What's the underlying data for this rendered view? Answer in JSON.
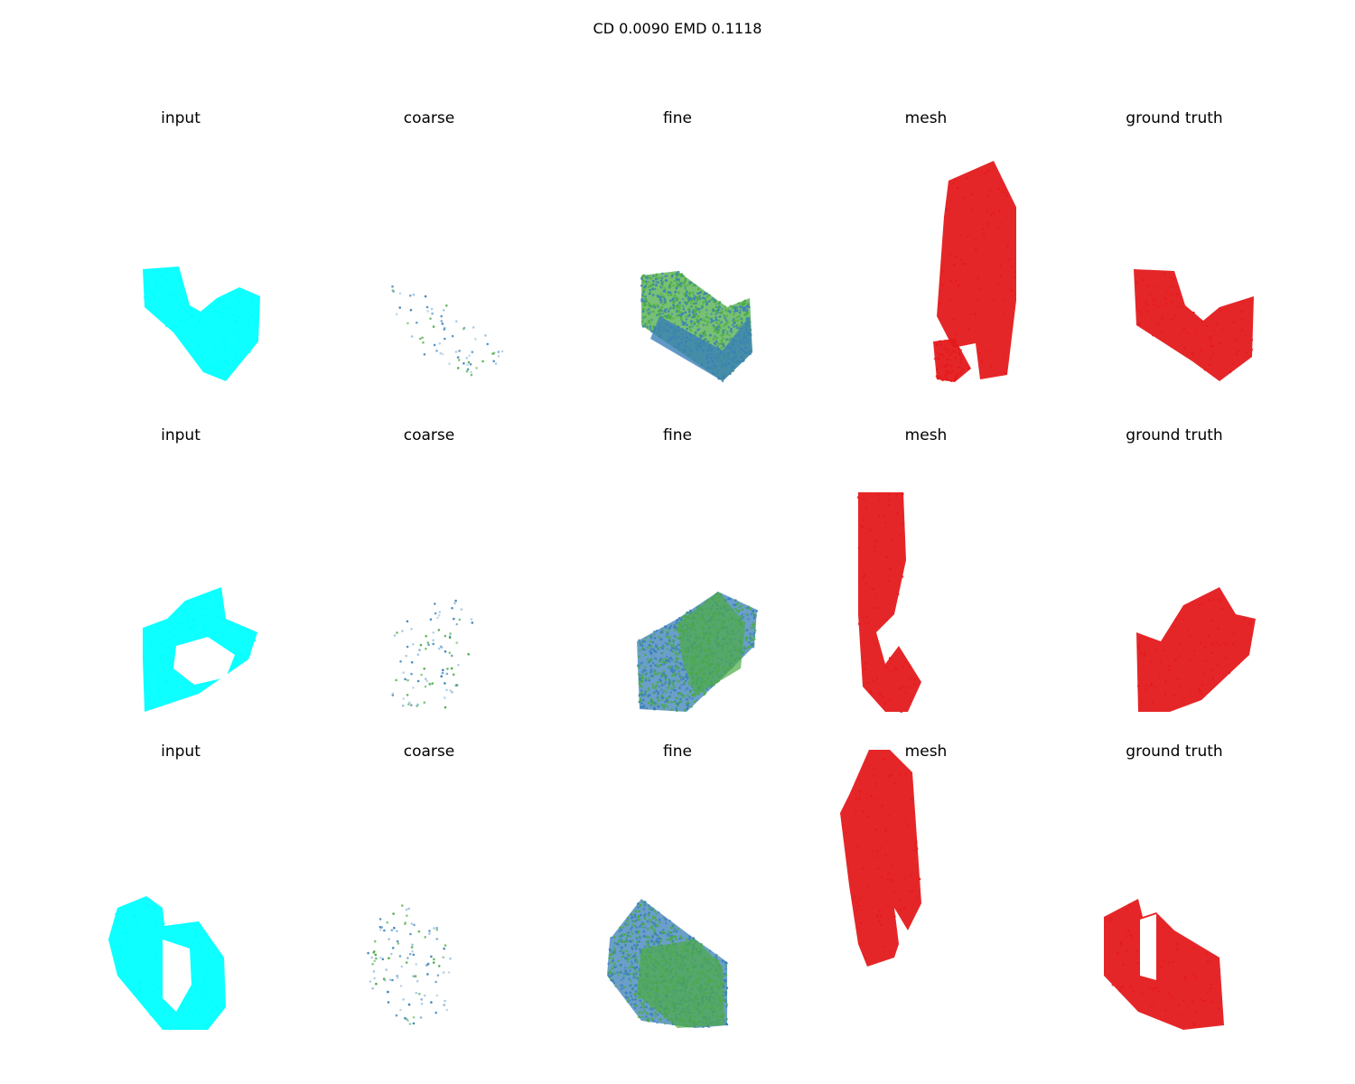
{
  "figure": {
    "title": "CD 0.0090  EMD 0.1118",
    "column_titles": [
      "input",
      "coarse",
      "fine",
      "mesh",
      "ground truth"
    ]
  },
  "colors": {
    "input": "#00ffff",
    "coarse_a": "#3a7fb8",
    "coarse_b": "#4bab45",
    "fine_a": "#3a7fb8",
    "fine_b": "#4bab45",
    "mesh": "#e41a1c",
    "ground_truth": "#e41a1c"
  },
  "rows": [
    {
      "cells": [
        {
          "title": "input"
        },
        {
          "title": "coarse"
        },
        {
          "title": "fine"
        },
        {
          "title": "mesh"
        },
        {
          "title": "ground truth"
        }
      ]
    },
    {
      "cells": [
        {
          "title": "input"
        },
        {
          "title": "coarse"
        },
        {
          "title": "fine"
        },
        {
          "title": "mesh"
        },
        {
          "title": "ground truth"
        }
      ]
    },
    {
      "cells": [
        {
          "title": "input"
        },
        {
          "title": "coarse"
        },
        {
          "title": "fine"
        },
        {
          "title": "mesh"
        },
        {
          "title": "ground truth"
        }
      ]
    }
  ]
}
